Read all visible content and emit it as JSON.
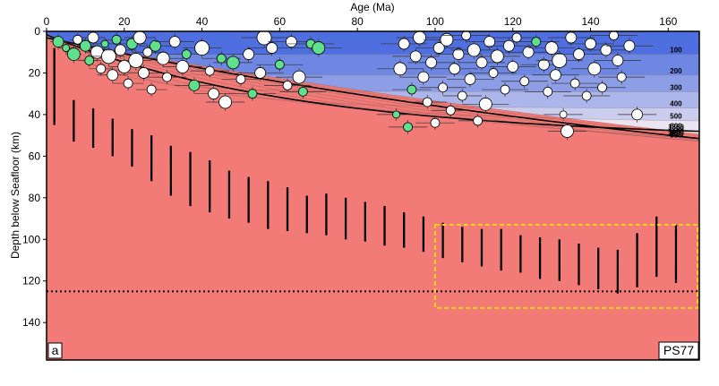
{
  "chart_data": {
    "type": "scatter",
    "panel_label": "a",
    "model_label": "PS77",
    "xlabel": "Age (Ma)",
    "ylabel": "Depth below Seafloor (km)",
    "xlim": [
      0,
      168
    ],
    "ylim": [
      0,
      158
    ],
    "y_inverted": true,
    "x_ticks": [
      0,
      20,
      40,
      60,
      80,
      100,
      120,
      140,
      160
    ],
    "y_ticks": [
      0,
      20,
      40,
      60,
      80,
      100,
      120,
      140
    ],
    "isotherms_C": [
      100,
      200,
      300,
      400,
      500,
      600,
      700,
      800,
      900,
      1000,
      1100,
      1200,
      1300
    ],
    "bold_isotherms_C": [
      600,
      1100
    ],
    "isotherm_label_depths_km": [
      11,
      21,
      29,
      37,
      44,
      52,
      61,
      70,
      80,
      90,
      101,
      112,
      124
    ],
    "colors": {
      "cold": "#4f6fe0",
      "neutral": "#fdf3f3",
      "hot": "#f27b77",
      "earthquake_white": "#ffffff",
      "earthquake_green": "#5fe08c",
      "highlight_box": "#ffd21a"
    },
    "reference_depth_km": 125,
    "highlight_box": {
      "age_min": 100,
      "age_max": 168,
      "depth_min": 93,
      "depth_max": 133
    },
    "lab_bars": {
      "age": [
        2,
        7,
        12,
        17,
        22,
        27,
        32,
        37,
        42,
        47,
        52,
        57,
        62,
        67,
        72,
        77,
        82,
        87,
        92,
        97,
        102,
        107,
        112,
        117,
        122,
        127,
        132,
        137,
        142,
        147,
        152,
        157,
        162
      ],
      "top_km": [
        8,
        33,
        37,
        42,
        47,
        50,
        55,
        58,
        62,
        67,
        70,
        72,
        75,
        79,
        78,
        80,
        82,
        84,
        87,
        89,
        92,
        94,
        95,
        95,
        98,
        99,
        100,
        102,
        104,
        105,
        97,
        89,
        93
      ],
      "bottom_km": [
        45,
        53,
        56,
        60,
        65,
        72,
        79,
        84,
        87,
        90,
        92,
        95,
        96,
        97,
        98,
        100,
        101,
        103,
        104,
        106,
        109,
        111,
        113,
        115,
        116,
        119,
        120,
        122,
        124,
        126,
        123,
        118,
        121
      ]
    },
    "earthquakes": [
      {
        "age": 3,
        "depth": 5,
        "r": 6,
        "c": "g",
        "e": 2
      },
      {
        "age": 5,
        "depth": 8,
        "r": 4,
        "c": "g",
        "e": 2
      },
      {
        "age": 7,
        "depth": 11,
        "r": 7,
        "c": "g",
        "e": 2
      },
      {
        "age": 8,
        "depth": 4,
        "r": 5,
        "c": "w",
        "e": 2
      },
      {
        "age": 10,
        "depth": 7,
        "r": 6,
        "c": "g",
        "e": 3
      },
      {
        "age": 11,
        "depth": 14,
        "r": 5,
        "c": "g",
        "e": 3
      },
      {
        "age": 12,
        "depth": 3,
        "r": 6,
        "c": "w",
        "e": 3
      },
      {
        "age": 13,
        "depth": 10,
        "r": 7,
        "c": "w",
        "e": 3
      },
      {
        "age": 14,
        "depth": 18,
        "r": 5,
        "c": "w",
        "e": 3
      },
      {
        "age": 15,
        "depth": 6,
        "r": 4,
        "c": "g",
        "e": 3
      },
      {
        "age": 16,
        "depth": 12,
        "r": 8,
        "c": "w",
        "e": 4
      },
      {
        "age": 17,
        "depth": 21,
        "r": 6,
        "c": "w",
        "e": 4
      },
      {
        "age": 18,
        "depth": 4,
        "r": 5,
        "c": "g",
        "e": 3
      },
      {
        "age": 19,
        "depth": 9,
        "r": 6,
        "c": "w",
        "e": 4
      },
      {
        "age": 20,
        "depth": 17,
        "r": 7,
        "c": "w",
        "e": 4
      },
      {
        "age": 21,
        "depth": 25,
        "r": 5,
        "c": "w",
        "e": 4
      },
      {
        "age": 22,
        "depth": 6,
        "r": 6,
        "c": "g",
        "e": 4
      },
      {
        "age": 23,
        "depth": 14,
        "r": 8,
        "c": "w",
        "e": 4
      },
      {
        "age": 24,
        "depth": 3,
        "r": 7,
        "c": "w",
        "e": 4
      },
      {
        "age": 25,
        "depth": 20,
        "r": 6,
        "c": "w",
        "e": 4
      },
      {
        "age": 26,
        "depth": 10,
        "r": 5,
        "c": "w",
        "e": 4
      },
      {
        "age": 27,
        "depth": 28,
        "r": 5,
        "c": "w",
        "e": 4
      },
      {
        "age": 28,
        "depth": 7,
        "r": 6,
        "c": "g",
        "e": 4
      },
      {
        "age": 30,
        "depth": 13,
        "r": 7,
        "c": "w",
        "e": 5
      },
      {
        "age": 31,
        "depth": 22,
        "r": 5,
        "c": "w",
        "e": 5
      },
      {
        "age": 33,
        "depth": 5,
        "r": 6,
        "c": "w",
        "e": 5
      },
      {
        "age": 35,
        "depth": 17,
        "r": 7,
        "c": "w",
        "e": 5
      },
      {
        "age": 36,
        "depth": 11,
        "r": 5,
        "c": "g",
        "e": 5
      },
      {
        "age": 38,
        "depth": 26,
        "r": 6,
        "c": "g",
        "e": 5
      },
      {
        "age": 40,
        "depth": 8,
        "r": 8,
        "c": "w",
        "e": 5
      },
      {
        "age": 42,
        "depth": 19,
        "r": 5,
        "c": "w",
        "e": 5
      },
      {
        "age": 43,
        "depth": 30,
        "r": 6,
        "c": "w",
        "e": 5
      },
      {
        "age": 45,
        "depth": 13,
        "r": 5,
        "c": "g",
        "e": 5
      },
      {
        "age": 46,
        "depth": 34,
        "r": 7,
        "c": "w",
        "e": 5
      },
      {
        "age": 48,
        "depth": 15,
        "r": 7,
        "c": "g",
        "e": 5
      },
      {
        "age": 50,
        "depth": 23,
        "r": 5,
        "c": "w",
        "e": 5
      },
      {
        "age": 52,
        "depth": 11,
        "r": 6,
        "c": "w",
        "e": 6
      },
      {
        "age": 53,
        "depth": 30,
        "r": 5,
        "c": "g",
        "e": 6
      },
      {
        "age": 55,
        "depth": 20,
        "r": 6,
        "c": "w",
        "e": 6
      },
      {
        "age": 56,
        "depth": 3,
        "r": 8,
        "c": "w",
        "e": 6
      },
      {
        "age": 58,
        "depth": 8,
        "r": 6,
        "c": "w",
        "e": 6
      },
      {
        "age": 60,
        "depth": 16,
        "r": 5,
        "c": "g",
        "e": 6
      },
      {
        "age": 62,
        "depth": 26,
        "r": 5,
        "c": "w",
        "e": 6
      },
      {
        "age": 63,
        "depth": 5,
        "r": 6,
        "c": "w",
        "e": 6
      },
      {
        "age": 65,
        "depth": 22,
        "r": 7,
        "c": "w",
        "e": 6
      },
      {
        "age": 66,
        "depth": 29,
        "r": 5,
        "c": "g",
        "e": 6
      },
      {
        "age": 68,
        "depth": 6,
        "r": 5,
        "c": "g",
        "e": 6
      },
      {
        "age": 70,
        "depth": 8,
        "r": 7,
        "c": "g",
        "e": 6
      },
      {
        "age": 90,
        "depth": 40,
        "r": 4,
        "c": "g",
        "e": 5
      },
      {
        "age": 91,
        "depth": 18,
        "r": 7,
        "c": "w",
        "e": 6
      },
      {
        "age": 92,
        "depth": 6,
        "r": 6,
        "c": "w",
        "e": 6
      },
      {
        "age": 93,
        "depth": 46,
        "r": 5,
        "c": "g",
        "e": 5
      },
      {
        "age": 94,
        "depth": 28,
        "r": 5,
        "c": "g",
        "e": 5
      },
      {
        "age": 95,
        "depth": 12,
        "r": 6,
        "c": "w",
        "e": 6
      },
      {
        "age": 96,
        "depth": 3,
        "r": 7,
        "c": "w",
        "e": 6
      },
      {
        "age": 97,
        "depth": 22,
        "r": 6,
        "c": "w",
        "e": 6
      },
      {
        "age": 98,
        "depth": 34,
        "r": 5,
        "c": "w",
        "e": 5
      },
      {
        "age": 99,
        "depth": 15,
        "r": 6,
        "c": "w",
        "e": 6
      },
      {
        "age": 100,
        "depth": 44,
        "r": 5,
        "c": "w",
        "e": 5
      },
      {
        "age": 101,
        "depth": 8,
        "r": 6,
        "c": "w",
        "e": 6
      },
      {
        "age": 102,
        "depth": 27,
        "r": 5,
        "c": "w",
        "e": 6
      },
      {
        "age": 103,
        "depth": 4,
        "r": 7,
        "c": "w",
        "e": 6
      },
      {
        "age": 104,
        "depth": 38,
        "r": 5,
        "c": "w",
        "e": 5
      },
      {
        "age": 105,
        "depth": 18,
        "r": 6,
        "c": "w",
        "e": 6
      },
      {
        "age": 106,
        "depth": 11,
        "r": 6,
        "c": "w",
        "e": 6
      },
      {
        "age": 107,
        "depth": 31,
        "r": 5,
        "c": "w",
        "e": 5
      },
      {
        "age": 108,
        "depth": 2,
        "r": 5,
        "c": "w",
        "e": 6
      },
      {
        "age": 109,
        "depth": 23,
        "r": 6,
        "c": "w",
        "e": 6
      },
      {
        "age": 110,
        "depth": 9,
        "r": 7,
        "c": "w",
        "e": 6
      },
      {
        "age": 111,
        "depth": 43,
        "r": 5,
        "c": "w",
        "e": 5
      },
      {
        "age": 112,
        "depth": 15,
        "r": 6,
        "c": "w",
        "e": 6
      },
      {
        "age": 113,
        "depth": 35,
        "r": 7,
        "c": "w",
        "e": 6
      },
      {
        "age": 114,
        "depth": 5,
        "r": 6,
        "c": "w",
        "e": 6
      },
      {
        "age": 115,
        "depth": 20,
        "r": 5,
        "c": "w",
        "e": 6
      },
      {
        "age": 116,
        "depth": 12,
        "r": 7,
        "c": "w",
        "e": 6
      },
      {
        "age": 118,
        "depth": 28,
        "r": 5,
        "c": "w",
        "e": 6
      },
      {
        "age": 119,
        "depth": 7,
        "r": 6,
        "c": "w",
        "e": 6
      },
      {
        "age": 120,
        "depth": 17,
        "r": 6,
        "c": "w",
        "e": 6
      },
      {
        "age": 121,
        "depth": 3,
        "r": 5,
        "c": "w",
        "e": 6
      },
      {
        "age": 123,
        "depth": 24,
        "r": 5,
        "c": "w",
        "e": 6
      },
      {
        "age": 124,
        "depth": 10,
        "r": 6,
        "c": "w",
        "e": 6
      },
      {
        "age": 126,
        "depth": 5,
        "r": 5,
        "c": "g",
        "e": 6
      },
      {
        "age": 128,
        "depth": 16,
        "r": 6,
        "c": "w",
        "e": 6
      },
      {
        "age": 129,
        "depth": 29,
        "r": 5,
        "c": "w",
        "e": 6
      },
      {
        "age": 130,
        "depth": 8,
        "r": 7,
        "c": "w",
        "e": 6
      },
      {
        "age": 131,
        "depth": 21,
        "r": 6,
        "c": "w",
        "e": 6
      },
      {
        "age": 132,
        "depth": 14,
        "r": 8,
        "c": "w",
        "e": 6
      },
      {
        "age": 133,
        "depth": 40,
        "r": 4,
        "c": "w",
        "e": 5
      },
      {
        "age": 134,
        "depth": 48,
        "r": 7,
        "c": "w",
        "e": 5
      },
      {
        "age": 135,
        "depth": 3,
        "r": 6,
        "c": "w",
        "e": 6
      },
      {
        "age": 136,
        "depth": 25,
        "r": 5,
        "c": "w",
        "e": 6
      },
      {
        "age": 137,
        "depth": 11,
        "r": 6,
        "c": "w",
        "e": 6
      },
      {
        "age": 139,
        "depth": 31,
        "r": 5,
        "c": "w",
        "e": 6
      },
      {
        "age": 140,
        "depth": 6,
        "r": 6,
        "c": "w",
        "e": 6
      },
      {
        "age": 141,
        "depth": 18,
        "r": 7,
        "c": "w",
        "e": 6
      },
      {
        "age": 143,
        "depth": 27,
        "r": 5,
        "c": "w",
        "e": 6
      },
      {
        "age": 144,
        "depth": 9,
        "r": 6,
        "c": "w",
        "e": 6
      },
      {
        "age": 146,
        "depth": 2,
        "r": 5,
        "c": "w",
        "e": 6
      },
      {
        "age": 147,
        "depth": 14,
        "r": 6,
        "c": "w",
        "e": 6
      },
      {
        "age": 148,
        "depth": 22,
        "r": 5,
        "c": "w",
        "e": 6
      },
      {
        "age": 150,
        "depth": 7,
        "r": 6,
        "c": "w",
        "e": 6
      },
      {
        "age": 152,
        "depth": 40,
        "r": 6,
        "c": "w",
        "e": 5
      }
    ]
  }
}
